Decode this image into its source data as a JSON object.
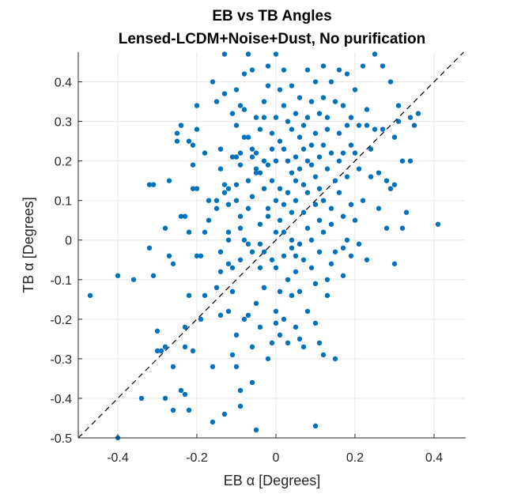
{
  "chart_data": {
    "type": "scatter",
    "title_lines": [
      "EB vs TB Angles",
      "Lensed-LCDM+Noise+Dust, No purification"
    ],
    "xlabel": "EB α [Degrees]",
    "ylabel": "TB α [Degrees]",
    "xlim": [
      -0.5,
      0.48
    ],
    "ylim": [
      -0.5,
      0.475
    ],
    "x_ticks": [
      -0.4,
      -0.2,
      0,
      0.2,
      0.4
    ],
    "x_tick_labels": [
      "-0.4",
      "-0.2",
      "0",
      "0.2",
      "0.4"
    ],
    "y_ticks": [
      -0.5,
      -0.4,
      -0.3,
      -0.2,
      -0.1,
      0,
      0.1,
      0.2,
      0.3,
      0.4
    ],
    "y_tick_labels": [
      "-0.5",
      "-0.4",
      "-0.3",
      "-0.2",
      "-0.1",
      "0",
      "0.1",
      "0.2",
      "0.3",
      "0.4"
    ],
    "grid": true,
    "reference_line": "y = x (dashed)",
    "marker_color": "#0072BD",
    "points": [
      [
        -0.47,
        -0.14
      ],
      [
        -0.4,
        -0.09
      ],
      [
        -0.4,
        -0.5
      ],
      [
        -0.36,
        -0.1
      ],
      [
        -0.34,
        -0.4
      ],
      [
        -0.32,
        -0.02
      ],
      [
        -0.32,
        0.14
      ],
      [
        -0.31,
        0.14
      ],
      [
        -0.31,
        -0.09
      ],
      [
        -0.3,
        -0.23
      ],
      [
        -0.3,
        -0.28
      ],
      [
        -0.29,
        -0.28
      ],
      [
        -0.28,
        -0.27
      ],
      [
        -0.28,
        -0.4
      ],
      [
        -0.28,
        0.03
      ],
      [
        -0.27,
        0.15
      ],
      [
        -0.27,
        -0.04
      ],
      [
        -0.26,
        -0.06
      ],
      [
        -0.26,
        -0.32
      ],
      [
        -0.26,
        -0.43
      ],
      [
        -0.25,
        0.25
      ],
      [
        -0.25,
        0.27
      ],
      [
        -0.24,
        0.29
      ],
      [
        -0.24,
        0.29
      ],
      [
        -0.24,
        0.06
      ],
      [
        -0.24,
        -0.38
      ],
      [
        -0.23,
        -0.39
      ],
      [
        -0.23,
        -0.27
      ],
      [
        -0.23,
        -0.22
      ],
      [
        -0.23,
        0.06
      ],
      [
        -0.22,
        0.02
      ],
      [
        -0.22,
        0.25
      ],
      [
        -0.22,
        -0.14
      ],
      [
        -0.22,
        -0.43
      ],
      [
        -0.21,
        0.24
      ],
      [
        -0.21,
        0.19
      ],
      [
        -0.21,
        0.13
      ],
      [
        -0.21,
        -0.28
      ],
      [
        -0.2,
        0.34
      ],
      [
        -0.2,
        0.28
      ],
      [
        -0.2,
        0.13
      ],
      [
        -0.2,
        -0.04
      ],
      [
        -0.19,
        -0.2
      ],
      [
        -0.19,
        -0.04
      ],
      [
        -0.18,
        0.02
      ],
      [
        -0.18,
        0.22
      ],
      [
        -0.17,
        0.1
      ],
      [
        -0.17,
        0.05
      ],
      [
        -0.16,
        -0.32
      ],
      [
        -0.16,
        -0.46
      ],
      [
        -0.16,
        0.4
      ],
      [
        -0.15,
        0.1
      ],
      [
        -0.15,
        0.35
      ],
      [
        -0.15,
        0.08
      ],
      [
        -0.15,
        -0.12
      ],
      [
        -0.14,
        0.23
      ],
      [
        -0.14,
        -0.19
      ],
      [
        -0.14,
        -0.03
      ],
      [
        -0.14,
        -0.08
      ],
      [
        -0.14,
        0.18
      ],
      [
        -0.13,
        0.47
      ],
      [
        -0.13,
        0.14
      ],
      [
        -0.13,
        0.12
      ],
      [
        -0.13,
        -0.44
      ],
      [
        -0.13,
        0.37
      ],
      [
        -0.12,
        0.13
      ],
      [
        -0.12,
        -0.18
      ],
      [
        -0.12,
        -0.06
      ],
      [
        -0.12,
        0.09
      ],
      [
        -0.12,
        0.02
      ],
      [
        -0.12,
        0.0
      ],
      [
        -0.11,
        0.21
      ],
      [
        -0.11,
        -0.29
      ],
      [
        -0.11,
        0.32
      ],
      [
        -0.11,
        -0.07
      ],
      [
        -0.11,
        -0.13
      ],
      [
        -0.1,
        0.29
      ],
      [
        -0.1,
        0.1
      ],
      [
        -0.1,
        0.14
      ],
      [
        -0.1,
        -0.24
      ],
      [
        -0.1,
        -0.32
      ],
      [
        -0.1,
        0.38
      ],
      [
        -0.1,
        0.21
      ],
      [
        -0.09,
        0.03
      ],
      [
        -0.09,
        0.22
      ],
      [
        -0.09,
        0.34
      ],
      [
        -0.09,
        0.06
      ],
      [
        -0.09,
        -0.05
      ],
      [
        -0.09,
        -0.38
      ],
      [
        -0.09,
        -0.42
      ],
      [
        -0.09,
        0.19
      ],
      [
        -0.08,
        0.33
      ],
      [
        -0.08,
        -0.2
      ],
      [
        -0.08,
        0.0
      ],
      [
        -0.08,
        0.26
      ],
      [
        -0.08,
        0.42
      ],
      [
        -0.07,
        0.26
      ],
      [
        -0.07,
        0.15
      ],
      [
        -0.07,
        0.08
      ],
      [
        -0.07,
        -0.19
      ],
      [
        -0.07,
        0.47
      ],
      [
        -0.07,
        -0.01
      ],
      [
        -0.06,
        0.21
      ],
      [
        -0.06,
        0.11
      ],
      [
        -0.06,
        0.23
      ],
      [
        -0.06,
        -0.03
      ],
      [
        -0.06,
        -0.27
      ],
      [
        -0.06,
        0.43
      ],
      [
        -0.06,
        -0.36
      ],
      [
        -0.05,
        0.31
      ],
      [
        -0.05,
        0.22
      ],
      [
        -0.05,
        0.18
      ],
      [
        -0.05,
        -0.16
      ],
      [
        -0.05,
        0.17
      ],
      [
        -0.05,
        -0.48
      ],
      [
        -0.04,
        0.04
      ],
      [
        -0.04,
        0.17
      ],
      [
        -0.04,
        -0.01
      ],
      [
        -0.04,
        -0.22
      ],
      [
        -0.04,
        0.28
      ],
      [
        -0.03,
        0.31
      ],
      [
        -0.03,
        0.13
      ],
      [
        -0.03,
        0.35
      ],
      [
        -0.03,
        0.2
      ],
      [
        -0.03,
        -0.03
      ],
      [
        -0.03,
        -0.12
      ],
      [
        -0.02,
        0.19
      ],
      [
        -0.02,
        0.08
      ],
      [
        -0.02,
        0.06
      ],
      [
        -0.02,
        -0.3
      ],
      [
        -0.02,
        0.44
      ],
      [
        -0.01,
        0.27
      ],
      [
        -0.01,
        0.23
      ],
      [
        -0.01,
        -0.26
      ],
      [
        -0.01,
        0.15
      ],
      [
        -0.01,
        -0.05
      ],
      [
        0.0,
        0.02
      ],
      [
        0.0,
        0.1
      ],
      [
        0.0,
        0.31
      ],
      [
        0.0,
        0.2
      ],
      [
        0.0,
        -0.07
      ],
      [
        0.0,
        -0.18
      ],
      [
        0.0,
        0.47
      ],
      [
        0.01,
        0.38
      ],
      [
        0.01,
        0.13
      ],
      [
        0.01,
        0.05
      ],
      [
        0.01,
        0.25
      ],
      [
        0.01,
        -0.13
      ],
      [
        0.01,
        -0.24
      ],
      [
        0.02,
        0.34
      ],
      [
        0.02,
        0.23
      ],
      [
        0.02,
        0.09
      ],
      [
        0.02,
        0.02
      ],
      [
        0.02,
        -0.04
      ],
      [
        0.02,
        -0.2
      ],
      [
        0.02,
        0.43
      ],
      [
        0.03,
        0.2
      ],
      [
        0.03,
        0.12
      ],
      [
        0.03,
        -0.1
      ],
      [
        0.03,
        -0.26
      ],
      [
        0.03,
        0.3
      ],
      [
        0.04,
        0.17
      ],
      [
        0.04,
        0.28
      ],
      [
        0.04,
        0.07
      ],
      [
        0.04,
        -0.02
      ],
      [
        0.04,
        -0.14
      ],
      [
        0.04,
        0.39
      ],
      [
        0.05,
        0.32
      ],
      [
        0.05,
        0.21
      ],
      [
        0.05,
        0.15
      ],
      [
        0.05,
        0.1
      ],
      [
        0.05,
        -0.04
      ],
      [
        0.05,
        -0.08
      ],
      [
        0.05,
        -0.22
      ],
      [
        0.06,
        0.26
      ],
      [
        0.06,
        0.18
      ],
      [
        0.06,
        -0.13
      ],
      [
        0.06,
        -0.25
      ],
      [
        0.06,
        0.36
      ],
      [
        0.07,
        0.23
      ],
      [
        0.07,
        0.07
      ],
      [
        0.07,
        0.29
      ],
      [
        0.07,
        -0.05
      ],
      [
        0.07,
        0.14
      ],
      [
        0.07,
        -0.27
      ],
      [
        0.08,
        0.2
      ],
      [
        0.08,
        0.31
      ],
      [
        0.08,
        0.03
      ],
      [
        0.08,
        0.12
      ],
      [
        0.08,
        -0.18
      ],
      [
        0.08,
        0.43
      ],
      [
        0.09,
        0.24
      ],
      [
        0.09,
        0.35
      ],
      [
        0.09,
        0.0
      ],
      [
        0.09,
        -0.07
      ],
      [
        0.09,
        0.19
      ],
      [
        0.1,
        0.27
      ],
      [
        0.1,
        0.4
      ],
      [
        0.1,
        0.09
      ],
      [
        0.1,
        0.16
      ],
      [
        0.1,
        -0.11
      ],
      [
        0.1,
        -0.21
      ],
      [
        0.1,
        -0.47
      ],
      [
        0.11,
        0.32
      ],
      [
        0.11,
        0.13
      ],
      [
        0.11,
        0.05
      ],
      [
        0.11,
        0.21
      ],
      [
        0.11,
        -0.03
      ],
      [
        0.11,
        -0.26
      ],
      [
        0.12,
        0.36
      ],
      [
        0.12,
        0.24
      ],
      [
        0.12,
        0.1
      ],
      [
        0.12,
        0.02
      ],
      [
        0.12,
        -0.29
      ],
      [
        0.13,
        0.31
      ],
      [
        0.13,
        0.18
      ],
      [
        0.13,
        -0.14
      ],
      [
        0.13,
        0.28
      ],
      [
        0.13,
        -0.1
      ],
      [
        0.14,
        0.22
      ],
      [
        0.14,
        0.08
      ],
      [
        0.14,
        0.04
      ],
      [
        0.14,
        0.4
      ],
      [
        0.14,
        -0.06
      ],
      [
        0.15,
        0.35
      ],
      [
        0.15,
        0.15
      ],
      [
        0.15,
        -0.03
      ],
      [
        0.15,
        -0.3
      ],
      [
        0.16,
        0.12
      ],
      [
        0.16,
        0.27
      ],
      [
        0.16,
        0.2
      ],
      [
        0.16,
        0.43
      ],
      [
        0.17,
        0.06
      ],
      [
        0.17,
        -0.02
      ],
      [
        0.17,
        0.34
      ],
      [
        0.17,
        0.22
      ],
      [
        0.17,
        -0.09
      ],
      [
        0.18,
        0.29
      ],
      [
        0.18,
        0.16
      ],
      [
        0.18,
        0.42
      ],
      [
        0.18,
        0.0
      ],
      [
        0.19,
        0.24
      ],
      [
        0.19,
        0.31
      ],
      [
        0.19,
        0.09
      ],
      [
        0.19,
        -0.04
      ],
      [
        0.2,
        0.22
      ],
      [
        0.2,
        0.38
      ],
      [
        0.2,
        0.05
      ],
      [
        0.21,
        0.29
      ],
      [
        0.21,
        -0.01
      ],
      [
        0.21,
        0.18
      ],
      [
        0.22,
        0.44
      ],
      [
        0.22,
        0.1
      ],
      [
        0.23,
        0.29
      ],
      [
        0.23,
        0.33
      ],
      [
        0.23,
        -0.05
      ],
      [
        0.24,
        0.16
      ],
      [
        0.24,
        0.23
      ],
      [
        0.25,
        0.28
      ],
      [
        0.25,
        0.47
      ],
      [
        0.26,
        0.08
      ],
      [
        0.26,
        0.17
      ],
      [
        0.27,
        0.28
      ],
      [
        0.27,
        0.44
      ],
      [
        0.28,
        0.15
      ],
      [
        0.28,
        0.03
      ],
      [
        0.29,
        0.13
      ],
      [
        0.29,
        0.4
      ],
      [
        0.3,
        0.26
      ],
      [
        0.3,
        -0.06
      ],
      [
        0.31,
        0.34
      ],
      [
        0.31,
        0.3
      ],
      [
        0.32,
        0.03
      ],
      [
        0.32,
        0.2
      ],
      [
        0.33,
        0.07
      ],
      [
        0.34,
        0.31
      ],
      [
        0.35,
        0.29
      ],
      [
        0.36,
        0.32
      ],
      [
        0.41,
        0.04
      ],
      [
        0.3,
        0.14
      ],
      [
        0.34,
        0.2
      ],
      [
        -0.02,
        0.39
      ],
      [
        0.12,
        0.44
      ],
      [
        -0.04,
        -0.07
      ],
      [
        0.0,
        -0.21
      ],
      [
        -0.18,
        -0.14
      ],
      [
        0.06,
        -0.01
      ],
      [
        0.04,
        0.0
      ]
    ]
  }
}
